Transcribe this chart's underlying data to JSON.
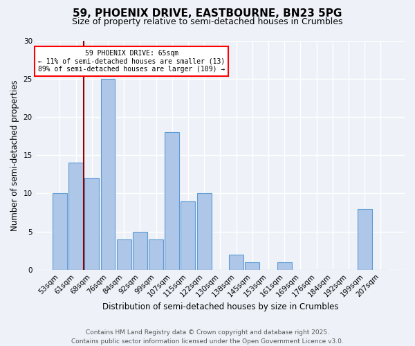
{
  "title_line1": "59, PHOENIX DRIVE, EASTBOURNE, BN23 5PG",
  "title_line2": "Size of property relative to semi-detached houses in Crumbles",
  "xlabel": "Distribution of semi-detached houses by size in Crumbles",
  "ylabel": "Number of semi-detached properties",
  "categories": [
    "53sqm",
    "61sqm",
    "68sqm",
    "76sqm",
    "84sqm",
    "92sqm",
    "99sqm",
    "107sqm",
    "115sqm",
    "122sqm",
    "130sqm",
    "138sqm",
    "145sqm",
    "153sqm",
    "161sqm",
    "169sqm",
    "176sqm",
    "184sqm",
    "192sqm",
    "199sqm",
    "207sqm"
  ],
  "values": [
    10,
    14,
    12,
    25,
    4,
    5,
    4,
    18,
    9,
    10,
    0,
    2,
    1,
    0,
    1,
    0,
    0,
    0,
    0,
    8,
    0
  ],
  "bar_color": "#aec6e8",
  "bar_edge_color": "#5b9bd5",
  "vline_x": 1.5,
  "annotation_title": "59 PHOENIX DRIVE: 65sqm",
  "annotation_line1": "← 11% of semi-detached houses are smaller (13)",
  "annotation_line2": "89% of semi-detached houses are larger (109) →",
  "vline_color": "#8b0000",
  "ylim": [
    0,
    30
  ],
  "yticks": [
    0,
    5,
    10,
    15,
    20,
    25,
    30
  ],
  "footer_line1": "Contains HM Land Registry data © Crown copyright and database right 2025.",
  "footer_line2": "Contains public sector information licensed under the Open Government Licence v3.0.",
  "bg_color": "#eef2f8",
  "grid_color": "white",
  "title_fontsize": 11,
  "subtitle_fontsize": 9,
  "axis_label_fontsize": 8.5,
  "tick_fontsize": 7.5,
  "footer_fontsize": 6.5
}
